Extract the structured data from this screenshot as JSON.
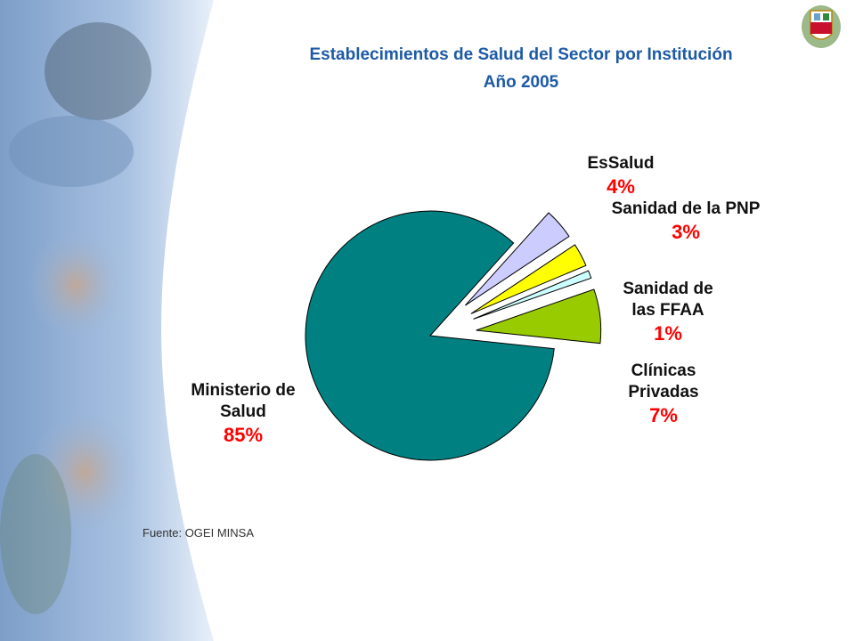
{
  "chart_data": {
    "type": "pie",
    "title": "Establecimientos de Salud del Sector por Institución",
    "subtitle": "Año 2005",
    "categories": [
      "EsSalud",
      "Sanidad de la PNP",
      "Sanidad de las FFAA",
      "Clínicas Privadas",
      "Ministerio de Salud"
    ],
    "values": [
      4,
      3,
      1,
      7,
      85
    ],
    "value_labels": [
      "4%",
      "3%",
      "1%",
      "7%",
      "85%"
    ],
    "colors": [
      "#ccccff",
      "#ffff00",
      "#ccffff",
      "#99cc00",
      "#008080"
    ],
    "source": "Fuente: OGEI MINSA"
  }
}
